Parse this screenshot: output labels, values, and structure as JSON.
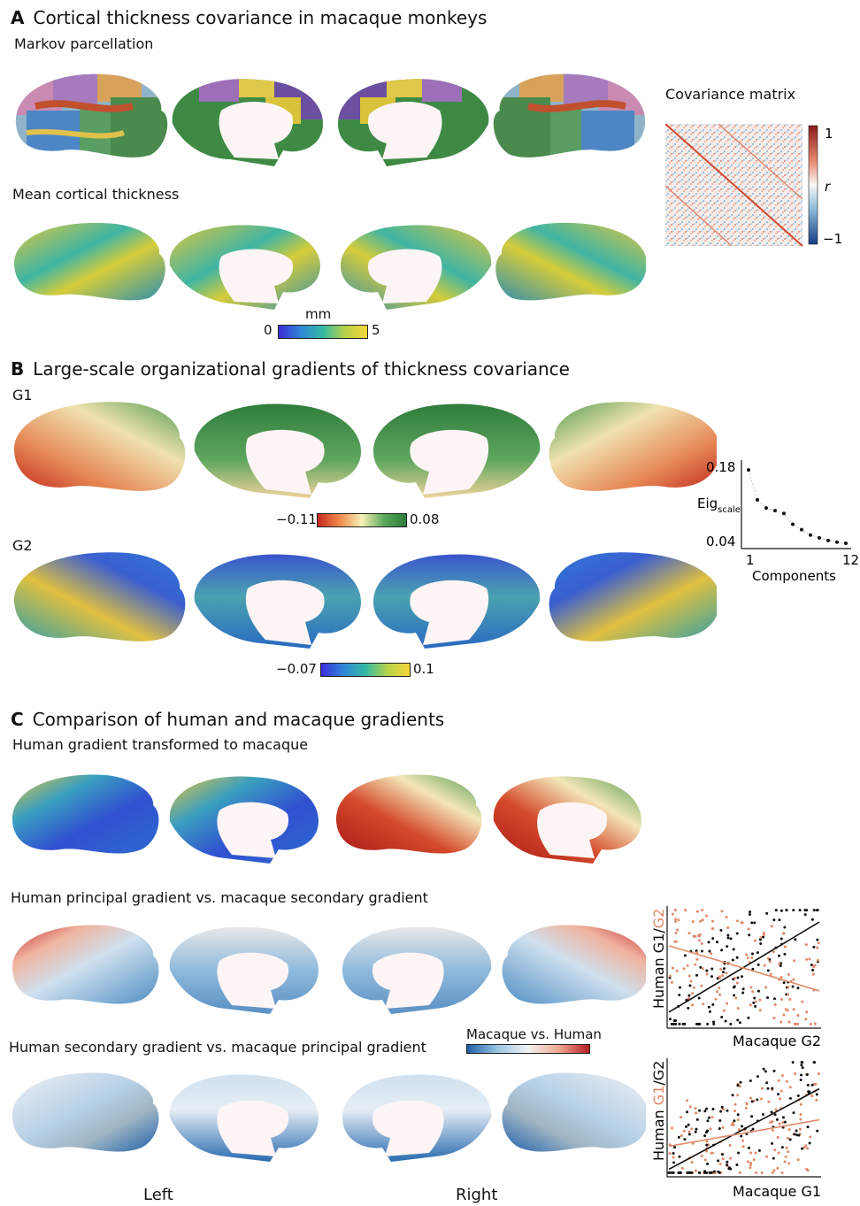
{
  "panelA": {
    "letter": "A",
    "title": "Cortical thickness covariance in macaque monkeys",
    "markov_label": "Markov parcellation",
    "thickness_label": "Mean cortical thickness",
    "matrix_label": "Covariance matrix",
    "matrix_scale": {
      "max": "1",
      "min": "−1",
      "var": "r"
    },
    "thickness_scale": {
      "unit": "mm",
      "min": "0",
      "max": "5"
    }
  },
  "panelB": {
    "letter": "B",
    "title": "Large-scale organizational gradients of thickness covariance",
    "g1_label": "G1",
    "g2_label": "G2",
    "g1_scale": {
      "min": "−0.11",
      "max": "0.08"
    },
    "g2_scale": {
      "min": "−0.07",
      "max": "0.1"
    }
  },
  "panelC": {
    "letter": "C",
    "title": "Comparison of human and macaque gradients",
    "transformed_label": "Human gradient transformed to macaque",
    "row1_label": "Human principal gradient vs. macaque secondary gradient",
    "row2_label": "Human secondary gradient vs. macaque principal gradient",
    "diff_scale_label": "Macaque vs. Human",
    "left_label": "Left",
    "right_label": "Right"
  },
  "colors": {
    "viridis_like": [
      "#3b2bd8",
      "#2f86d6",
      "#34b9a5",
      "#b8d24a",
      "#f5d63a"
    ],
    "rdylgn": [
      "#c62a1f",
      "#f08a4b",
      "#f7f1b8",
      "#5aa85a",
      "#2e7d3b"
    ],
    "rdbu": [
      "#1f5fa8",
      "#9cc6e4",
      "#f3f3f3",
      "#f0a890",
      "#b51d26"
    ],
    "salmon": "#e08a6a"
  },
  "chart_data": [
    {
      "type": "scatter",
      "title": "",
      "xlabel": "Components",
      "ylabel": "Eig_scale",
      "xticks": [
        "1",
        "12"
      ],
      "yticks": [
        "0.18",
        "0.04"
      ],
      "x": [
        1,
        2,
        3,
        4,
        5,
        6,
        7,
        8,
        9,
        10,
        11,
        12
      ],
      "y": [
        0.175,
        0.12,
        0.105,
        0.1,
        0.095,
        0.075,
        0.065,
        0.055,
        0.05,
        0.045,
        0.042,
        0.04
      ],
      "ylim": [
        0.03,
        0.19
      ],
      "xlim": [
        1,
        12
      ]
    },
    {
      "type": "scatter",
      "xlabel": "Macaque G2",
      "ylabel_parts": [
        "Human ",
        "G1",
        "/",
        "G2"
      ],
      "series": [
        {
          "name": "G1",
          "color": "#111111"
        },
        {
          "name": "G2",
          "color": "#e08a6a"
        }
      ],
      "fit_lines": [
        {
          "series": "G1",
          "y_at_xmin": 0.12,
          "y_at_xmax": 0.88
        },
        {
          "series": "G2",
          "y_at_xmin": 0.68,
          "y_at_xmax": 0.3
        }
      ]
    },
    {
      "type": "scatter",
      "xlabel": "Macaque G1",
      "ylabel_parts": [
        "Human ",
        "G1",
        "/",
        "G2"
      ],
      "series": [
        {
          "name": "G1",
          "color": "#e08a6a"
        },
        {
          "name": "G2",
          "color": "#111111"
        }
      ],
      "fit_lines": [
        {
          "series": "G2",
          "y_at_xmin": 0.05,
          "y_at_xmax": 0.75
        },
        {
          "series": "G1",
          "y_at_xmin": 0.25,
          "y_at_xmax": 0.48
        }
      ]
    }
  ]
}
